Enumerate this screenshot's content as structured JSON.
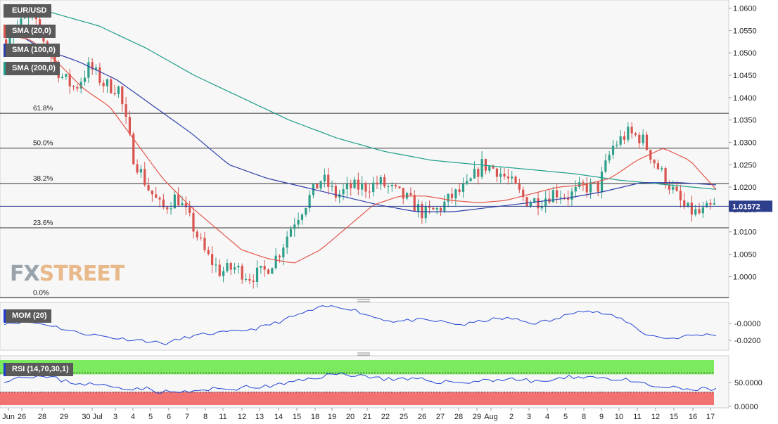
{
  "instrument": "EUR/USD",
  "legend": {
    "sma20": "SMA (20,0)",
    "sma100": "SMA (100,0)",
    "sma200": "SMA (200,0)"
  },
  "indicators": {
    "mom": "MOM (20)",
    "rsi": "RSI (14,70,30,1)"
  },
  "watermark": {
    "part1": "FX",
    "part2": "STREET"
  },
  "colors": {
    "up": "#2e9f8a",
    "down": "#d9534f",
    "sma20": "#e2574c",
    "sma100": "#2e3fa8",
    "sma200": "#1f9e8a",
    "mom": "#2346d6",
    "rsi": "#2346d6",
    "overbought": "#7bea5e",
    "oversold": "#f27272",
    "price_tag": "#2c3e8c"
  },
  "chart_data": {
    "type": "candlestick",
    "symbol": "EUR/USD",
    "price_axis": {
      "ticks": [
        "1.0600",
        "1.0550",
        "1.0500",
        "1.0450",
        "1.0400",
        "1.0350",
        "1.0300",
        "1.0250",
        "1.0200",
        "1.0150",
        "1.0100",
        "1.0050",
        "1.0000"
      ],
      "range": [
        0.9955,
        1.0615
      ]
    },
    "current_price": "1.01572",
    "x_labels": [
      "Jun",
      "26",
      "28",
      "29",
      "30 Jul",
      "3",
      "4",
      "5",
      "6",
      "7",
      "8",
      "11",
      "12",
      "13",
      "14",
      "15",
      "18",
      "19",
      "20",
      "21",
      "22",
      "25",
      "26",
      "27",
      "28",
      "29",
      "Aug",
      "2",
      "3",
      "4",
      "5",
      "8",
      "9",
      "10",
      "11",
      "12",
      "15",
      "16",
      "17"
    ],
    "fibonacci": [
      {
        "label": "61.8%",
        "price": 1.0365
      },
      {
        "label": "50.0%",
        "price": 1.0287
      },
      {
        "label": "38.2%",
        "price": 1.0208
      },
      {
        "label": "23.6%",
        "price": 1.0109
      },
      {
        "label": "0.0%",
        "price": 0.9953
      }
    ],
    "close_anchors": [
      1.053,
      1.056,
      1.058,
      1.052,
      1.045,
      1.042,
      1.047,
      1.043,
      1.042,
      1.027,
      1.02,
      1.015,
      1.018,
      1.012,
      1.005,
      1.001,
      1.002,
      1.0,
      1.001,
      1.005,
      1.012,
      1.017,
      1.022,
      1.018,
      1.02,
      1.02,
      1.021,
      1.019,
      1.017,
      1.014,
      1.015,
      1.018,
      1.02,
      1.025,
      1.024,
      1.021,
      1.017,
      1.017,
      1.019,
      1.018,
      1.02,
      1.02,
      1.029,
      1.032,
      1.031,
      1.025,
      1.02,
      1.015,
      1.014,
      1.0157
    ],
    "sma20": [
      1.054,
      1.053,
      1.048,
      1.042,
      1.038,
      1.03,
      1.022,
      1.016,
      1.011,
      1.006,
      1.004,
      1.003,
      1.006,
      1.011,
      1.016,
      1.018,
      1.018,
      1.017,
      1.0165,
      1.017,
      1.0185,
      1.02,
      1.0205,
      1.022,
      1.026,
      1.0287,
      1.026,
      1.0195
    ],
    "sma100": [
      1.056,
      1.051,
      1.048,
      1.044,
      1.038,
      1.032,
      1.025,
      1.022,
      1.02,
      1.018,
      1.016,
      1.0145,
      1.0145,
      1.0155,
      1.0165,
      1.0175,
      1.019,
      1.021,
      1.021,
      1.0205
    ],
    "sma200": [
      1.06,
      1.059,
      1.056,
      1.051,
      1.045,
      1.04,
      1.035,
      1.031,
      1.028,
      1.026,
      1.025,
      1.024,
      1.023,
      1.0215,
      1.0205,
      1.0195
    ],
    "mom": {
      "ticks": [
        "-0.0000",
        "-0.0200"
      ],
      "range": [
        -0.03,
        0.023
      ]
    },
    "rsi": {
      "ticks": [
        "50.0000",
        "0.0000"
      ],
      "overbought": 70,
      "oversold": 30,
      "range": [
        0,
        100
      ]
    }
  }
}
